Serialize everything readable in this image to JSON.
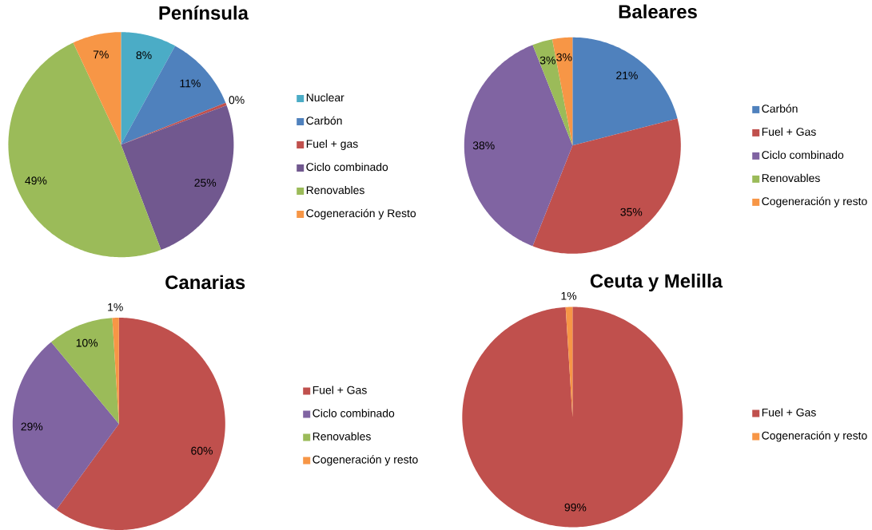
{
  "chart_data": [
    {
      "type": "pie",
      "title": "Península",
      "categories": [
        "Nuclear",
        "Carbón",
        "Fuel + gas",
        "Ciclo combinado",
        "Renovables",
        "Cogeneración y Resto"
      ],
      "values": [
        8,
        11,
        0.4,
        25,
        49,
        7
      ],
      "colors": [
        "#4bacc6",
        "#4f81bd",
        "#c0504d",
        "#71588f",
        "#9bbb59",
        "#f79646"
      ],
      "value_labels": [
        "8%",
        "11%",
        "0%",
        "25%",
        "49%",
        "7%"
      ],
      "legend": "right"
    },
    {
      "type": "pie",
      "title": "Baleares",
      "categories": [
        "Carbón",
        "Fuel + Gas",
        "Ciclo combinado",
        "Renovables",
        "Cogeneración y resto"
      ],
      "values": [
        21,
        35,
        38,
        3,
        3
      ],
      "colors": [
        "#4f81bd",
        "#c0504d",
        "#8064a2",
        "#9bbb59",
        "#f79646"
      ],
      "value_labels": [
        "21%",
        "35%",
        "38%",
        "3%",
        "3%"
      ],
      "legend": "right"
    },
    {
      "type": "pie",
      "title": "Canarias",
      "categories": [
        "Fuel + Gas",
        "Ciclo combinado",
        "Renovables",
        "Cogeneración y resto"
      ],
      "values": [
        60,
        29,
        10,
        1
      ],
      "colors": [
        "#c0504d",
        "#8064a2",
        "#9bbb59",
        "#f79646"
      ],
      "value_labels": [
        "60%",
        "29%",
        "10%",
        "1%"
      ],
      "legend": "right"
    },
    {
      "type": "pie",
      "title": "Ceuta y Melilla",
      "categories": [
        "Fuel + Gas",
        "Cogeneración y resto"
      ],
      "values": [
        99,
        1
      ],
      "colors": [
        "#c0504d",
        "#f79646"
      ],
      "value_labels": [
        "99%",
        "1%"
      ],
      "legend": "right"
    }
  ]
}
